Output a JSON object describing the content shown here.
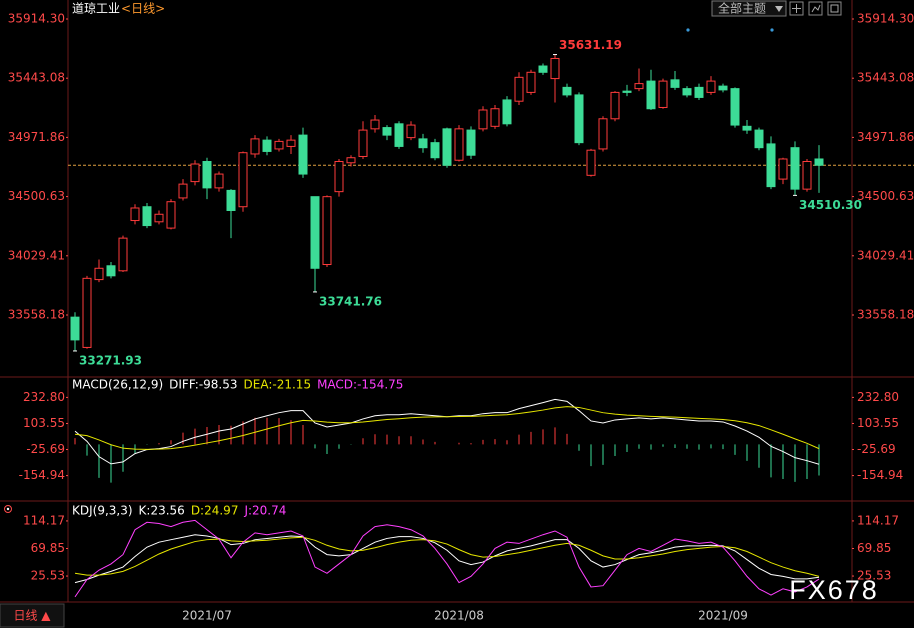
{
  "ui": {
    "theme_button": "全部主题",
    "period_button": "日线 ▲",
    "watermark": "FX678"
  },
  "chart_data": [
    {
      "type": "candlestick",
      "title": "道琼工业",
      "subtitle": "<日线>",
      "categories": [
        null,
        null,
        null,
        null,
        null,
        null,
        null,
        null,
        null,
        null,
        null,
        "2021/07",
        null,
        null,
        null,
        null,
        null,
        null,
        null,
        null,
        null,
        null,
        null,
        null,
        null,
        null,
        null,
        null,
        null,
        null,
        null,
        null,
        "2021/08",
        null,
        null,
        null,
        null,
        null,
        null,
        null,
        null,
        null,
        null,
        null,
        null,
        null,
        null,
        null,
        null,
        null,
        null,
        null,
        null,
        null,
        "2021/09",
        null,
        null,
        null,
        null,
        null,
        null,
        null,
        null
      ],
      "open": [
        33541,
        33300,
        33840,
        33950,
        33910,
        34310,
        34420,
        34300,
        34250,
        34490,
        34620,
        34780,
        34570,
        34550,
        34420,
        34840,
        34950,
        34880,
        34900,
        34990,
        34500,
        33960,
        34540,
        34770,
        34820,
        35040,
        35050,
        35080,
        34970,
        34960,
        34930,
        35040,
        34790,
        35030,
        35040,
        35060,
        35270,
        35260,
        35330,
        35540,
        35440,
        35370,
        35310,
        34670,
        34880,
        35120,
        35340,
        35360,
        35420,
        35210,
        35430,
        35360,
        35370,
        35330,
        35380,
        35360,
        35060,
        35030,
        34920,
        34640,
        34890,
        34560,
        34800
      ],
      "high": [
        33580,
        33870,
        34000,
        33980,
        34190,
        34440,
        34450,
        34390,
        34480,
        34640,
        34790,
        34810,
        34700,
        34560,
        34860,
        34990,
        34980,
        34960,
        34990,
        35050,
        34500,
        34510,
        34800,
        34830,
        35100,
        35150,
        35070,
        35100,
        35100,
        35000,
        34960,
        35050,
        35070,
        35060,
        35220,
        35230,
        35300,
        35490,
        35510,
        35560,
        35631.19,
        35400,
        35330,
        34880,
        35140,
        35340,
        35390,
        35520,
        35510,
        35440,
        35500,
        35380,
        35400,
        35460,
        35400,
        35370,
        35110,
        35050,
        34980,
        34810,
        34940,
        34800,
        34910
      ],
      "low": [
        33271.93,
        33290,
        33820,
        33850,
        33900,
        34280,
        34250,
        34280,
        34240,
        34470,
        34590,
        34480,
        34540,
        34170,
        34380,
        34810,
        34830,
        34860,
        34840,
        34650,
        33741.76,
        33940,
        34500,
        34740,
        34800,
        35010,
        34950,
        34880,
        34950,
        34850,
        34790,
        34730,
        34780,
        34800,
        35020,
        35040,
        35060,
        35230,
        35310,
        35470,
        35250,
        35290,
        34910,
        34660,
        34860,
        35100,
        35300,
        35340,
        35190,
        35200,
        35350,
        35290,
        35270,
        35310,
        35330,
        35050,
        35000,
        34870,
        34560,
        34600,
        34510.3,
        34540,
        34530
      ],
      "close": [
        33360,
        33850,
        33930,
        33870,
        34170,
        34410,
        34270,
        34360,
        34460,
        34600,
        34760,
        34570,
        34680,
        34390,
        34850,
        34960,
        34860,
        34940,
        34950,
        34680,
        33930,
        34500,
        34780,
        34810,
        35030,
        35110,
        34990,
        34900,
        35070,
        34890,
        34810,
        34750,
        35040,
        34830,
        35190,
        35200,
        35080,
        35450,
        35490,
        35490,
        35600,
        35310,
        34930,
        34870,
        35120,
        35330,
        35330,
        35400,
        35200,
        35420,
        35370,
        35310,
        35290,
        35420,
        35350,
        35070,
        35030,
        34890,
        34580,
        34800,
        34560,
        34780,
        34750
      ],
      "up_color": "#ff3b3b",
      "down_color": "#3ddc97",
      "ylim": [
        33072.6,
        36065.5
      ],
      "yticks": [
        {
          "value": 35914.3,
          "label": "35914.30"
        },
        35443.08,
        34971.86,
        34500.63,
        34029.41,
        33558.18
      ],
      "annotations": [
        {
          "text": "35631.19",
          "value": 35631.19
        },
        {
          "text": "33741.76",
          "value": 33741.76
        },
        {
          "text": "33271.93",
          "value": 33271.93
        },
        {
          "text": "34510.30",
          "value": 34510.3
        }
      ]
    },
    {
      "type": "macd",
      "title": "MACD(26,12,9)",
      "series": [
        {
          "name": "DIFF:-98.53",
          "color": "#ffffff",
          "values": [
            65.5,
            15,
            -61,
            -97,
            -87,
            -46,
            -26,
            -21,
            -11,
            15,
            35,
            50,
            66,
            76,
            101,
            126,
            142,
            157,
            167,
            167,
            106,
            86,
            96,
            106,
            126,
            142,
            147,
            147,
            152,
            147,
            142,
            137,
            142,
            142,
            152,
            157,
            157,
            177,
            192,
            207,
            223,
            213,
            167,
            116,
            106,
            121,
            126,
            131,
            126,
            131,
            126,
            121,
            116,
            116,
            111,
            91,
            66,
            35,
            -10,
            -36,
            -66,
            -81,
            -98.53
          ]
        },
        {
          "name": "DEA:-21.15",
          "color": "#e6e600",
          "values": [
            50,
            43,
            22,
            -2,
            -19,
            -24,
            -25,
            -24,
            -21,
            -14,
            -4,
            7,
            18,
            30,
            44,
            60,
            76,
            92,
            107,
            119,
            116,
            110,
            107,
            107,
            111,
            117,
            123,
            127,
            132,
            135,
            136,
            137,
            138,
            139,
            141,
            144,
            147,
            153,
            161,
            170,
            181,
            187,
            183,
            170,
            157,
            150,
            145,
            142,
            139,
            137,
            135,
            132,
            129,
            126,
            123,
            117,
            107,
            93,
            72,
            50,
            27,
            5,
            -21.15
          ]
        },
        {
          "name": "MACD:-154.75",
          "color": "#ff40ff",
          "style": "bar",
          "up_color": "#ff3b3b",
          "down_color": "#3ddc97",
          "values": [
            31,
            -56,
            -166,
            -190,
            -136,
            -44,
            -2,
            6,
            20,
            58,
            78,
            86,
            96,
            92,
            114,
            132,
            132,
            130,
            120,
            96,
            -20,
            -48,
            -22,
            -2,
            30,
            50,
            48,
            40,
            40,
            24,
            12,
            0,
            8,
            6,
            22,
            26,
            20,
            48,
            62,
            74,
            84,
            52,
            -32,
            -108,
            -102,
            -58,
            -38,
            -22,
            -26,
            -12,
            -18,
            -22,
            -26,
            -20,
            -24,
            -52,
            -82,
            -116,
            -164,
            -172,
            -186,
            -172,
            -154.75
          ]
        }
      ],
      "ylim": [
        -276,
        329
      ],
      "yticks": [
        {
          "value": 232.8,
          "label": "232.80"
        },
        103.55,
        -25.69,
        -154.94
      ]
    },
    {
      "type": "kdj",
      "title": "KDJ(9,3,3)",
      "series": [
        {
          "name": "K:23.56",
          "color": "#ffffff",
          "values": [
            15,
            20,
            27,
            33,
            40,
            57,
            72,
            80,
            84,
            88,
            92,
            90,
            86,
            76,
            78,
            84,
            86,
            88,
            90,
            89,
            72,
            60,
            58,
            60,
            70,
            80,
            86,
            89,
            89,
            86,
            79,
            67,
            50,
            44,
            48,
            58,
            66,
            70,
            74,
            79,
            84,
            84,
            70,
            50,
            40,
            44,
            52,
            60,
            63,
            67,
            72,
            74,
            74,
            75,
            74,
            66,
            52,
            38,
            28,
            25,
            21,
            21,
            23.56
          ]
        },
        {
          "name": "D:24.97",
          "color": "#e6e600",
          "values": [
            30,
            27,
            27,
            29,
            33,
            41,
            51,
            61,
            69,
            75,
            81,
            84,
            85,
            82,
            81,
            82,
            83,
            85,
            87,
            88,
            83,
            75,
            69,
            66,
            67,
            71,
            76,
            80,
            83,
            84,
            82,
            77,
            68,
            60,
            56,
            57,
            60,
            63,
            67,
            71,
            75,
            78,
            75,
            67,
            58,
            53,
            53,
            55,
            58,
            61,
            65,
            68,
            70,
            72,
            73,
            71,
            65,
            56,
            47,
            40,
            34,
            30,
            24.97
          ]
        },
        {
          "name": "J:20.74",
          "color": "#ff40ff",
          "values": [
            -8,
            20,
            35,
            45,
            60,
            100,
            112,
            110,
            105,
            112,
            115,
            100,
            85,
            55,
            80,
            95,
            92,
            95,
            98,
            90,
            40,
            30,
            45,
            60,
            90,
            105,
            108,
            105,
            100,
            90,
            70,
            45,
            15,
            25,
            45,
            70,
            80,
            78,
            85,
            92,
            98,
            88,
            40,
            8,
            10,
            35,
            60,
            70,
            65,
            75,
            85,
            82,
            78,
            80,
            72,
            50,
            25,
            5,
            -5,
            5,
            0,
            8,
            20.74
          ]
        }
      ],
      "ylim": [
        -13,
        143
      ],
      "yticks": [
        114.17,
        69.85,
        25.53
      ]
    }
  ]
}
